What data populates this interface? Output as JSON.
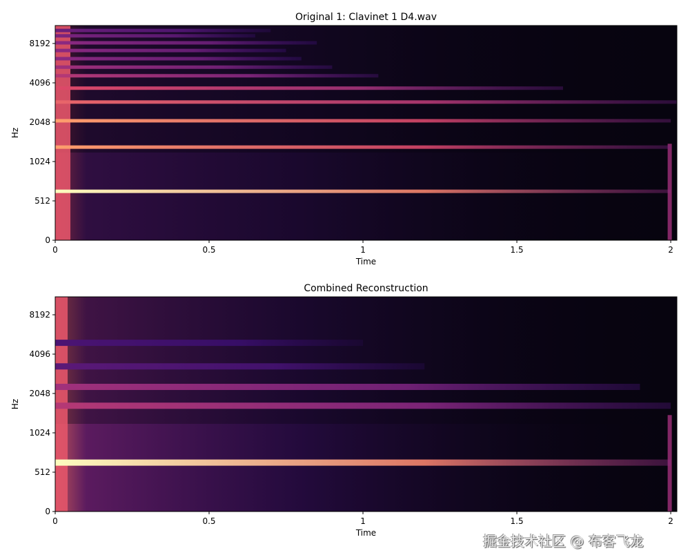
{
  "chart_data": [
    {
      "type": "heatmap",
      "title": "Original 1: Clavinet 1 D4.wav",
      "xlabel": "Time",
      "ylabel": "Hz",
      "xlim": [
        0,
        2.02
      ],
      "xticks": [
        "0",
        "0.5",
        "1",
        "1.5",
        "2"
      ],
      "yticks": [
        "0",
        "512",
        "1024",
        "2048",
        "4096",
        "8192"
      ],
      "yscale": "log",
      "colormap": "magma",
      "harmonic_bands": [
        {
          "freq_hz": 606,
          "end_s": 2.0,
          "intensity": 1.0
        },
        {
          "freq_hz": 1320,
          "end_s": 2.0,
          "intensity": 0.85
        },
        {
          "freq_hz": 2100,
          "end_s": 2.0,
          "intensity": 0.85
        },
        {
          "freq_hz": 2920,
          "end_s": 2.02,
          "intensity": 0.75
        },
        {
          "freq_hz": 3730,
          "end_s": 1.65,
          "intensity": 0.7
        },
        {
          "freq_hz": 4640,
          "end_s": 1.05,
          "intensity": 0.6
        },
        {
          "freq_hz": 5400,
          "end_s": 0.9,
          "intensity": 0.55
        },
        {
          "freq_hz": 6270,
          "end_s": 0.8,
          "intensity": 0.5
        },
        {
          "freq_hz": 7240,
          "end_s": 0.75,
          "intensity": 0.5
        },
        {
          "freq_hz": 8290,
          "end_s": 0.85,
          "intensity": 0.5
        },
        {
          "freq_hz": 9380,
          "end_s": 0.65,
          "intensity": 0.45
        },
        {
          "freq_hz": 10300,
          "end_s": 0.7,
          "intensity": 0.4
        }
      ]
    },
    {
      "type": "heatmap",
      "title": "Combined Reconstruction",
      "xlabel": "Time",
      "ylabel": "Hz",
      "xlim": [
        0,
        2.02
      ],
      "xticks": [
        "0",
        "0.5",
        "1",
        "1.5",
        "2"
      ],
      "yticks": [
        "0",
        "512",
        "1024",
        "2048",
        "4096",
        "8192"
      ],
      "yscale": "log",
      "colormap": "magma",
      "harmonic_bands": [
        {
          "freq_hz": 606,
          "end_s": 2.0,
          "intensity": 1.0
        },
        {
          "freq_hz": 1650,
          "end_s": 2.0,
          "intensity": 0.6
        },
        {
          "freq_hz": 2300,
          "end_s": 1.9,
          "intensity": 0.55
        },
        {
          "freq_hz": 3300,
          "end_s": 1.2,
          "intensity": 0.35
        },
        {
          "freq_hz": 5000,
          "end_s": 1.0,
          "intensity": 0.3
        }
      ]
    }
  ],
  "watermark": "掘金技术社区 @ 布客飞龙"
}
